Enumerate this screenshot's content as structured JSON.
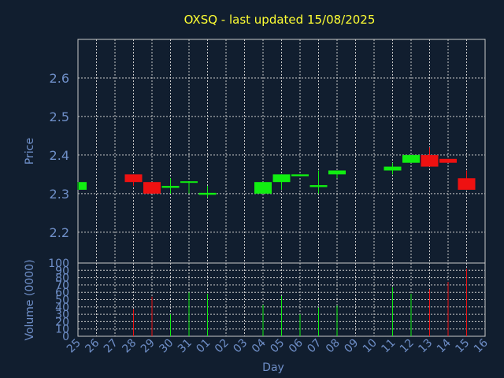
{
  "chart_data": {
    "type": "candlestick",
    "title": "OXSQ - last updated 15/08/2025",
    "xlabel": "Day",
    "days": [
      "25",
      "26",
      "27",
      "28",
      "29",
      "30",
      "31",
      "01",
      "02",
      "03",
      "04",
      "05",
      "06",
      "07",
      "08",
      "09",
      "10",
      "11",
      "12",
      "13",
      "14",
      "15",
      "16"
    ],
    "price": {
      "ylabel": "Price",
      "ylim": [
        2.12,
        2.7
      ],
      "yticks": [
        "2.2",
        "2.3",
        "2.4",
        "2.5",
        "2.6"
      ],
      "candles": [
        {
          "day": "25",
          "open": 2.31,
          "close": 2.33,
          "high": 2.33,
          "low": 2.31
        },
        {
          "day": "28",
          "open": 2.35,
          "close": 2.33,
          "high": 2.35,
          "low": 2.32
        },
        {
          "day": "29",
          "open": 2.33,
          "close": 2.3,
          "high": 2.33,
          "low": 2.3
        },
        {
          "day": "30",
          "open": 2.315,
          "close": 2.32,
          "high": 2.34,
          "low": 2.3
        },
        {
          "day": "31",
          "open": 2.328,
          "close": 2.332,
          "high": 2.332,
          "low": 2.3
        },
        {
          "day": "01",
          "open": 2.297,
          "close": 2.302,
          "high": 2.32,
          "low": 2.29
        },
        {
          "day": "04",
          "open": 2.3,
          "close": 2.33,
          "high": 2.33,
          "low": 2.3
        },
        {
          "day": "05",
          "open": 2.33,
          "close": 2.35,
          "high": 2.35,
          "low": 2.31
        },
        {
          "day": "06",
          "open": 2.345,
          "close": 2.35,
          "high": 2.35,
          "low": 2.345
        },
        {
          "day": "07",
          "open": 2.317,
          "close": 2.322,
          "high": 2.36,
          "low": 2.3
        },
        {
          "day": "08",
          "open": 2.35,
          "close": 2.36,
          "high": 2.36,
          "low": 2.34
        },
        {
          "day": "11",
          "open": 2.36,
          "close": 2.37,
          "high": 2.38,
          "low": 2.35
        },
        {
          "day": "12",
          "open": 2.38,
          "close": 2.4,
          "high": 2.4,
          "low": 2.38
        },
        {
          "day": "13",
          "open": 2.4,
          "close": 2.37,
          "high": 2.42,
          "low": 2.37
        },
        {
          "day": "14",
          "open": 2.39,
          "close": 2.38,
          "high": 2.39,
          "low": 2.38
        },
        {
          "day": "15",
          "open": 2.34,
          "close": 2.31,
          "high": 2.36,
          "low": 2.31
        }
      ]
    },
    "volume": {
      "ylabel": "Volume (0000)",
      "ylim": [
        0,
        100
      ],
      "yticks": [
        "0",
        "10",
        "20",
        "30",
        "40",
        "50",
        "60",
        "70",
        "80",
        "90",
        "100"
      ],
      "bars": [
        {
          "day": "28",
          "value": 37,
          "direction": "down"
        },
        {
          "day": "29",
          "value": 54,
          "direction": "down"
        },
        {
          "day": "30",
          "value": 30,
          "direction": "up"
        },
        {
          "day": "31",
          "value": 60,
          "direction": "up"
        },
        {
          "day": "01",
          "value": 58,
          "direction": "up"
        },
        {
          "day": "04",
          "value": 43,
          "direction": "up"
        },
        {
          "day": "05",
          "value": 55,
          "direction": "up"
        },
        {
          "day": "06",
          "value": 30,
          "direction": "up"
        },
        {
          "day": "07",
          "value": 39,
          "direction": "up"
        },
        {
          "day": "08",
          "value": 42,
          "direction": "up"
        },
        {
          "day": "11",
          "value": 67,
          "direction": "up"
        },
        {
          "day": "12",
          "value": 58,
          "direction": "up"
        },
        {
          "day": "13",
          "value": 64,
          "direction": "down"
        },
        {
          "day": "14",
          "value": 74,
          "direction": "down"
        },
        {
          "day": "15",
          "value": 92,
          "direction": "down"
        }
      ]
    },
    "grid": true,
    "colors": {
      "background": "#111e2f",
      "up": "#11ee11",
      "down": "#ee1111",
      "title": "#ffff33",
      "axis_text": "#6f8fc8",
      "grid": "#c9c9c9"
    }
  }
}
